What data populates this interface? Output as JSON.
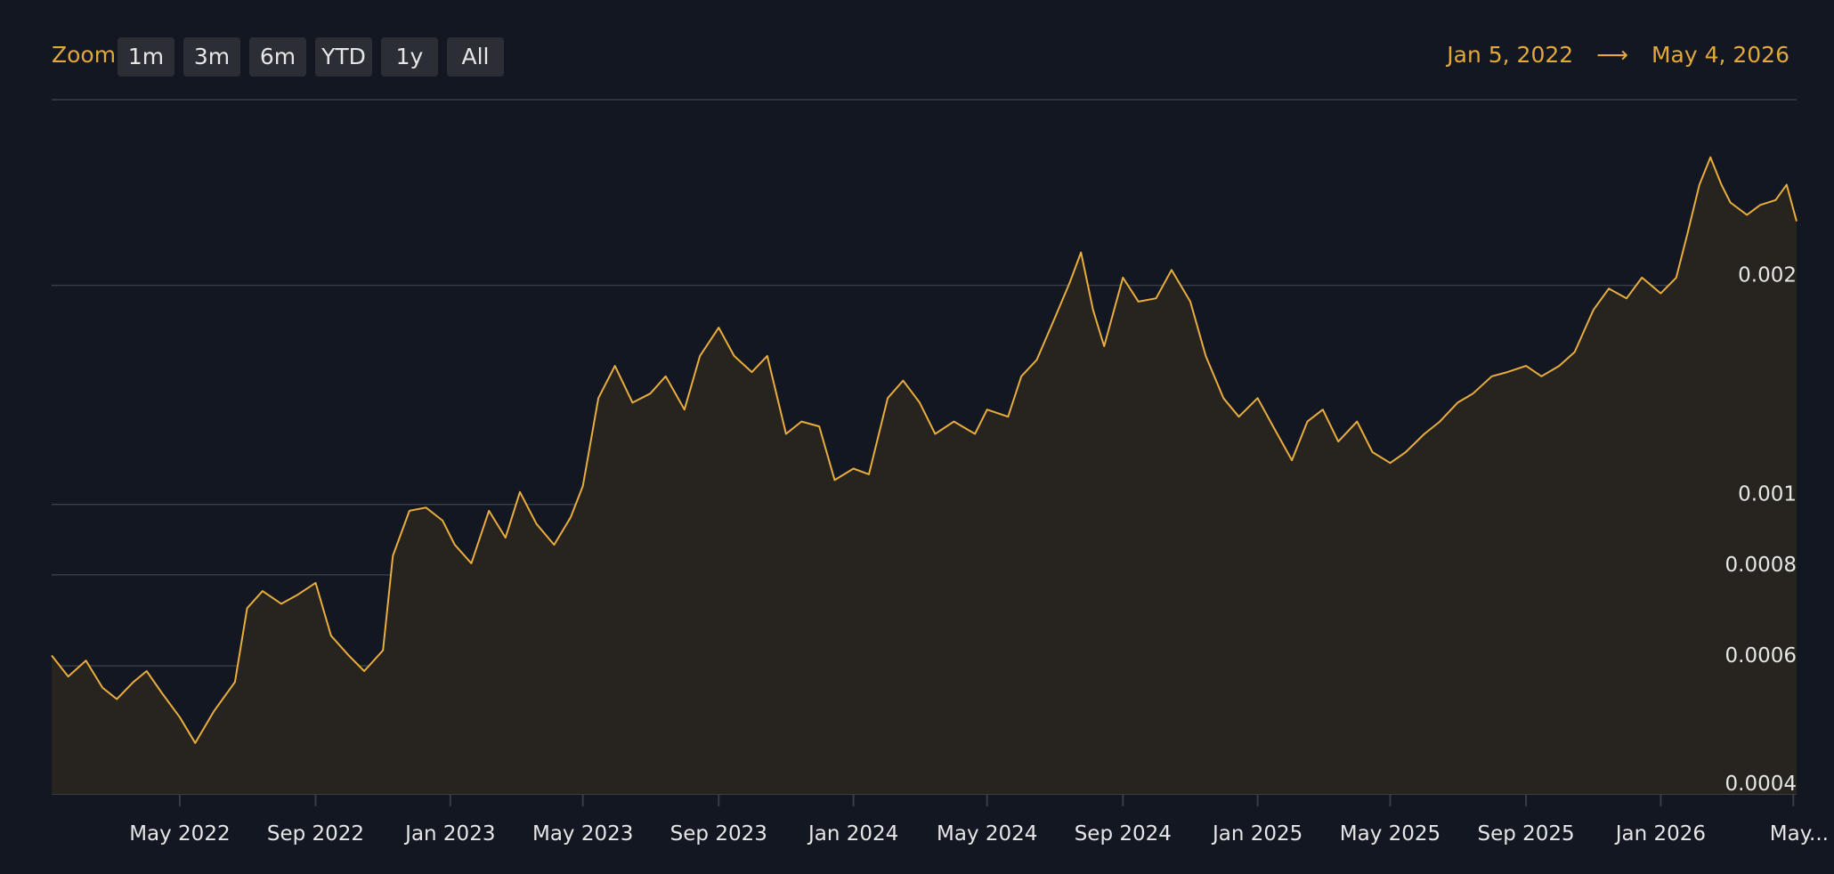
{
  "toolbar": {
    "zoom_label": "Zoom",
    "buttons": [
      "1m",
      "3m",
      "6m",
      "YTD",
      "1y",
      "All"
    ],
    "range_start": "Jan 5, 2022",
    "range_arrow": "⟶",
    "range_end": "May 4, 2026"
  },
  "colors": {
    "background": "#121722",
    "line": "#e9ad3f",
    "area": "#272420",
    "grid": "#3a3d44",
    "accent": "#e2a83b"
  },
  "chart_data": {
    "type": "line",
    "title": "",
    "xlabel": "",
    "ylabel": "",
    "x_range": [
      "2022-01-05",
      "2026-05-04"
    ],
    "y_scale": "log",
    "ylim": [
      0.0004,
      0.0036
    ],
    "yticks": [
      {
        "value": 0.0004,
        "label": "0.0004"
      },
      {
        "value": 0.0006,
        "label": "0.0006"
      },
      {
        "value": 0.0008,
        "label": "0.0008"
      },
      {
        "value": 0.001,
        "label": "0.001"
      },
      {
        "value": 0.002,
        "label": "0.002"
      }
    ],
    "xticks": [
      {
        "date": "2022-05-01",
        "label": "May 2022"
      },
      {
        "date": "2022-09-01",
        "label": "Sep 2022"
      },
      {
        "date": "2023-01-01",
        "label": "Jan 2023"
      },
      {
        "date": "2023-05-01",
        "label": "May 2023"
      },
      {
        "date": "2023-09-01",
        "label": "Sep 2023"
      },
      {
        "date": "2024-01-01",
        "label": "Jan 2024"
      },
      {
        "date": "2024-05-01",
        "label": "May 2024"
      },
      {
        "date": "2024-09-01",
        "label": "Sep 2024"
      },
      {
        "date": "2025-01-01",
        "label": "Jan 2025"
      },
      {
        "date": "2025-05-01",
        "label": "May 2025"
      },
      {
        "date": "2025-09-01",
        "label": "Sep 2025"
      },
      {
        "date": "2026-01-01",
        "label": "Jan 2026"
      },
      {
        "date": "2026-05-01",
        "label": "May..."
      }
    ],
    "series": [
      {
        "points": [
          [
            "2022-01-05",
            0.00062
          ],
          [
            "2022-01-20",
            0.00058
          ],
          [
            "2022-02-05",
            0.00061
          ],
          [
            "2022-02-20",
            0.00056
          ],
          [
            "2022-03-05",
            0.00054
          ],
          [
            "2022-03-20",
            0.00057
          ],
          [
            "2022-04-01",
            0.00059
          ],
          [
            "2022-04-15",
            0.00055
          ],
          [
            "2022-05-01",
            0.00051
          ],
          [
            "2022-05-15",
            0.00047
          ],
          [
            "2022-06-01",
            0.00052
          ],
          [
            "2022-06-20",
            0.00057
          ],
          [
            "2022-07-01",
            0.00072
          ],
          [
            "2022-07-15",
            0.00076
          ],
          [
            "2022-08-01",
            0.00073
          ],
          [
            "2022-08-15",
            0.00075
          ],
          [
            "2022-09-01",
            0.00078
          ],
          [
            "2022-09-15",
            0.00066
          ],
          [
            "2022-10-01",
            0.00062
          ],
          [
            "2022-10-15",
            0.00059
          ],
          [
            "2022-11-01",
            0.00063
          ],
          [
            "2022-11-10",
            0.00085
          ],
          [
            "2022-11-25",
            0.00098
          ],
          [
            "2022-12-10",
            0.00099
          ],
          [
            "2022-12-25",
            0.00095
          ],
          [
            "2023-01-05",
            0.00088
          ],
          [
            "2023-01-20",
            0.00083
          ],
          [
            "2023-02-05",
            0.00098
          ],
          [
            "2023-02-20",
            0.0009
          ],
          [
            "2023-03-05",
            0.00104
          ],
          [
            "2023-03-20",
            0.00094
          ],
          [
            "2023-04-05",
            0.00088
          ],
          [
            "2023-04-20",
            0.00096
          ],
          [
            "2023-05-01",
            0.00106
          ],
          [
            "2023-05-15",
            0.0014
          ],
          [
            "2023-05-30",
            0.00155
          ],
          [
            "2023-06-15",
            0.00138
          ],
          [
            "2023-07-01",
            0.00142
          ],
          [
            "2023-07-15",
            0.0015
          ],
          [
            "2023-08-01",
            0.00135
          ],
          [
            "2023-08-15",
            0.0016
          ],
          [
            "2023-09-01",
            0.00175
          ],
          [
            "2023-09-15",
            0.0016
          ],
          [
            "2023-10-01",
            0.00152
          ],
          [
            "2023-10-15",
            0.0016
          ],
          [
            "2023-11-01",
            0.00125
          ],
          [
            "2023-11-15",
            0.0013
          ],
          [
            "2023-12-01",
            0.00128
          ],
          [
            "2023-12-15",
            0.00108
          ],
          [
            "2024-01-01",
            0.00112
          ],
          [
            "2024-01-15",
            0.0011
          ],
          [
            "2024-02-01",
            0.0014
          ],
          [
            "2024-02-15",
            0.00148
          ],
          [
            "2024-03-01",
            0.00138
          ],
          [
            "2024-03-15",
            0.00125
          ],
          [
            "2024-04-01",
            0.0013
          ],
          [
            "2024-04-20",
            0.00125
          ],
          [
            "2024-05-01",
            0.00135
          ],
          [
            "2024-05-20",
            0.00132
          ],
          [
            "2024-06-01",
            0.0015
          ],
          [
            "2024-06-15",
            0.00158
          ],
          [
            "2024-07-01",
            0.0018
          ],
          [
            "2024-07-15",
            0.00202
          ],
          [
            "2024-07-25",
            0.00222
          ],
          [
            "2024-08-05",
            0.00185
          ],
          [
            "2024-08-15",
            0.00165
          ],
          [
            "2024-09-01",
            0.00205
          ],
          [
            "2024-09-15",
            0.0019
          ],
          [
            "2024-10-01",
            0.00192
          ],
          [
            "2024-10-15",
            0.0021
          ],
          [
            "2024-11-01",
            0.0019
          ],
          [
            "2024-11-15",
            0.0016
          ],
          [
            "2024-12-01",
            0.0014
          ],
          [
            "2024-12-15",
            0.00132
          ],
          [
            "2025-01-01",
            0.0014
          ],
          [
            "2025-01-15",
            0.00128
          ],
          [
            "2025-02-01",
            0.00115
          ],
          [
            "2025-02-15",
            0.0013
          ],
          [
            "2025-03-01",
            0.00135
          ],
          [
            "2025-03-15",
            0.00122
          ],
          [
            "2025-04-01",
            0.0013
          ],
          [
            "2025-04-15",
            0.00118
          ],
          [
            "2025-05-01",
            0.00114
          ],
          [
            "2025-05-15",
            0.00118
          ],
          [
            "2025-06-01",
            0.00125
          ],
          [
            "2025-06-15",
            0.0013
          ],
          [
            "2025-07-01",
            0.00138
          ],
          [
            "2025-07-15",
            0.00142
          ],
          [
            "2025-08-01",
            0.0015
          ],
          [
            "2025-08-15",
            0.00152
          ],
          [
            "2025-09-01",
            0.00155
          ],
          [
            "2025-09-15",
            0.0015
          ],
          [
            "2025-10-01",
            0.00155
          ],
          [
            "2025-10-15",
            0.00162
          ],
          [
            "2025-11-01",
            0.00185
          ],
          [
            "2025-11-15",
            0.00198
          ],
          [
            "2025-12-01",
            0.00192
          ],
          [
            "2025-12-15",
            0.00205
          ],
          [
            "2026-01-01",
            0.00195
          ],
          [
            "2026-01-15",
            0.00205
          ],
          [
            "2026-01-25",
            0.00235
          ],
          [
            "2026-02-05",
            0.00275
          ],
          [
            "2026-02-15",
            0.003
          ],
          [
            "2026-02-25",
            0.00275
          ],
          [
            "2026-03-05",
            0.0026
          ],
          [
            "2026-03-20",
            0.0025
          ],
          [
            "2026-04-01",
            0.00258
          ],
          [
            "2026-04-15",
            0.00262
          ],
          [
            "2026-04-25",
            0.00275
          ],
          [
            "2026-05-04",
            0.00245
          ]
        ]
      }
    ]
  }
}
